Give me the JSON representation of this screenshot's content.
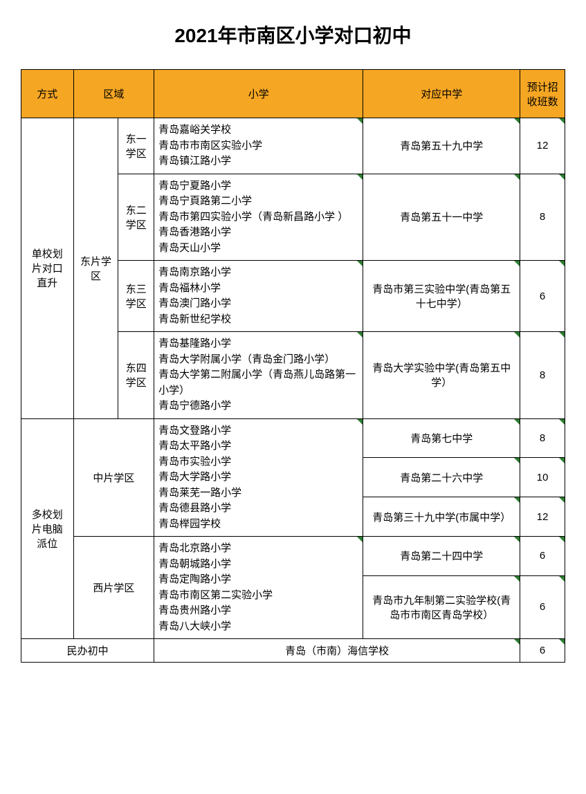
{
  "title": "2021年市南区小学对口初中",
  "headers": {
    "method": "方式",
    "region": "区域",
    "primary": "小学",
    "middle": "对应中学",
    "count": "预计招收班数"
  },
  "method1": "单校划片对口直升",
  "method2": "多校划片电脑派位",
  "region_east": "东片学区",
  "region_mid": "中片学区",
  "region_west": "西片学区",
  "private_label": "民办初中",
  "sub_e1": "东一学区",
  "sub_e2": "东二学区",
  "sub_e3": "东三学区",
  "sub_e4": "东四学区",
  "e1_s1": "青岛嘉峪关学校",
  "e1_s2": "青岛市市南区实验小学",
  "e1_s3": "青岛镇江路小学",
  "e1_mid": "青岛第五十九中学",
  "e1_cnt": "12",
  "e2_s1": "青岛宁夏路小学",
  "e2_s2": "青岛宁頁路第二小学",
  "e2_s3": "青岛市第四实验小学（青岛新昌路小学 ）",
  "e2_s4": "青岛香港路小学",
  "e2_s5": "青岛天山小学",
  "e2_mid": "青岛第五十一中学",
  "e2_cnt": "8",
  "e3_s1": "青岛南京路小学",
  "e3_s2": "青岛福林小学",
  "e3_s3": "青岛澳门路小学",
  "e3_s4": "青岛新世纪学校",
  "e3_mid": "青岛市第三实验中学(青岛第五十七中学）",
  "e3_cnt": "6",
  "e4_s1": "青岛基隆路小学",
  "e4_s2": "青岛大学附属小学（青岛金门路小学）",
  "e4_s3": "青岛大学第二附属小学（青岛燕儿岛路第一小学）",
  "e4_s4": "青岛宁德路小学",
  "e4_mid": "青岛大学实验中学(青岛第五中学）",
  "e4_cnt": "8",
  "m_s1": "青岛文登路小学",
  "m_s2": "青岛太平路小学",
  "m_s3": "青岛市实验小学",
  "m_s4": "青岛大学路小学",
  "m_s5": "青岛莱芜一路小学",
  "m_s6": "青岛德县路小学",
  "m_s7": "青岛榉园学校",
  "m_mid1": "青岛第七中学",
  "m_cnt1": "8",
  "m_mid2": "青岛第二十六中学",
  "m_cnt2": "10",
  "m_mid3": "青岛第三十九中学(市属中学）",
  "m_cnt3": "12",
  "w_s1": "青岛北京路小学",
  "w_s2": "青岛朝城路小学",
  "w_s3": "青岛定陶路小学",
  "w_s4": "青岛市南区第二实验小学",
  "w_s5": "青岛贵州路小学",
  "w_s6": "青岛八大峡小学",
  "w_mid1": "青岛第二十四中学",
  "w_cnt1": "6",
  "w_mid2": "青岛市九年制第二实验学校(青岛市市南区青岛学校）",
  "w_cnt2": "6",
  "private_school": "青岛（市南）海信学校",
  "private_cnt": "6"
}
